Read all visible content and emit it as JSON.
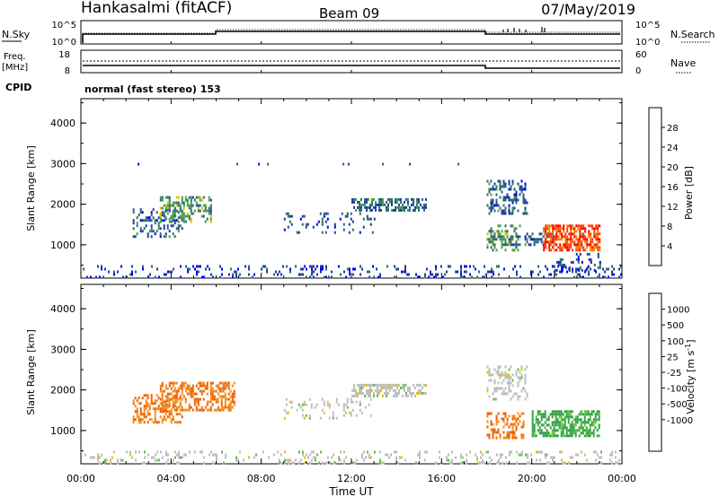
{
  "header": {
    "station": "Hankasalmi (fitACF)",
    "beam": "Beam 09",
    "date": "07/May/2019"
  },
  "noise_panel": {
    "left_label": "N.Sky",
    "right_label": "N.Search",
    "left_ticks": [
      "10^5",
      "10^0"
    ],
    "right_ticks": [
      "10^5",
      "10^0"
    ]
  },
  "freq_panel": {
    "left_label_1": "Freq.",
    "left_label_2": "[MHz]",
    "right_label": "Nave",
    "left_ticks": [
      "18",
      "8"
    ],
    "right_ticks": [
      "60",
      "0"
    ],
    "cpid_label": "CPID",
    "cpid_text": "normal (fast stereo) 153"
  },
  "x_ticks": [
    "00:00",
    "04:00",
    "08:00",
    "12:00",
    "16:00",
    "20:00",
    "00:00"
  ],
  "x_label": "Time UT",
  "colors": {
    "power_scale": [
      "#0000ff",
      "#1e3fa0",
      "#2f6e6e",
      "#45a045",
      "#e0c000",
      "#f08000",
      "#ff4000",
      "#ff0000"
    ],
    "velocity_scale": [
      "#1040d0",
      "#2080a0",
      "#30a040",
      "#60c040",
      "#bebebe",
      "#e8c000",
      "#f09020",
      "#f06000",
      "#ff2000",
      "#ff0000"
    ]
  },
  "chart_data": [
    {
      "type": "heatmap",
      "name": "Power",
      "ylabel": "Slant Range [km]",
      "xlabel": "Time UT",
      "x_range_hours": [
        0,
        24
      ],
      "ylim": [
        180,
        4600
      ],
      "y_ticks": [
        "4000",
        "3000",
        "2000",
        "1000"
      ],
      "colorbar_label": "Power [dB]",
      "colorbar_ticks": [
        "28",
        "24",
        "20",
        "16",
        "12",
        "8",
        "4"
      ],
      "colorbar_range": [
        0,
        32
      ],
      "regions": [
        {
          "t0": 0.0,
          "t1": 24.0,
          "r0": 200,
          "r1": 500,
          "level": 6,
          "density": 0.18
        },
        {
          "t0": 1.0,
          "t1": 18.0,
          "r0": 2960,
          "r1": 3020,
          "level": 8,
          "density": 0.05
        },
        {
          "t0": 2.3,
          "t1": 4.5,
          "r0": 1200,
          "r1": 1900,
          "level": 8,
          "density": 0.35
        },
        {
          "t0": 3.5,
          "t1": 5.8,
          "r0": 1600,
          "r1": 2200,
          "level": 12,
          "density": 0.5
        },
        {
          "t0": 9.0,
          "t1": 13.0,
          "r0": 1300,
          "r1": 1800,
          "level": 7,
          "density": 0.15
        },
        {
          "t0": 12.0,
          "t1": 15.3,
          "r0": 1850,
          "r1": 2150,
          "level": 9,
          "density": 0.6
        },
        {
          "t0": 18.0,
          "t1": 19.8,
          "r0": 1800,
          "r1": 2600,
          "level": 8,
          "density": 0.35
        },
        {
          "t0": 18.0,
          "t1": 19.5,
          "r0": 900,
          "r1": 1500,
          "level": 12,
          "density": 0.4
        },
        {
          "t0": 19.6,
          "t1": 21.0,
          "r0": 1000,
          "r1": 1300,
          "level": 8,
          "density": 0.4
        },
        {
          "t0": 20.5,
          "t1": 23.0,
          "r0": 900,
          "r1": 1500,
          "level": 26,
          "density": 0.7
        },
        {
          "t0": 21.0,
          "t1": 23.0,
          "r0": 400,
          "r1": 800,
          "level": 6,
          "density": 0.2
        }
      ]
    },
    {
      "type": "heatmap",
      "name": "Velocity",
      "ylabel": "Slant Range [km]",
      "xlabel": "Time UT",
      "x_range_hours": [
        0,
        24
      ],
      "ylim": [
        180,
        4600
      ],
      "y_ticks": [
        "4000",
        "3000",
        "2000",
        "1000"
      ],
      "colorbar_label": "Velocity [m s^-1]",
      "colorbar_ticks": [
        "1000",
        "500",
        "100",
        "25",
        "-25",
        "-100",
        "-500",
        "-1000"
      ],
      "regions": [
        {
          "t0": 0.0,
          "t1": 24.0,
          "r0": 200,
          "r1": 500,
          "level": 0,
          "density": 0.18
        },
        {
          "t0": 2.3,
          "t1": 4.5,
          "r0": 1200,
          "r1": 1900,
          "level": -500,
          "density": 0.45
        },
        {
          "t0": 3.5,
          "t1": 6.8,
          "r0": 1500,
          "r1": 2200,
          "level": -500,
          "density": 0.55
        },
        {
          "t0": 9.0,
          "t1": 13.0,
          "r0": 1300,
          "r1": 1800,
          "level": 0,
          "density": 0.15
        },
        {
          "t0": 12.0,
          "t1": 15.3,
          "r0": 1850,
          "r1": 2150,
          "level": 0,
          "density": 0.6
        },
        {
          "t0": 18.0,
          "t1": 19.8,
          "r0": 1800,
          "r1": 2600,
          "level": 0,
          "density": 0.35
        },
        {
          "t0": 18.0,
          "t1": 19.6,
          "r0": 850,
          "r1": 1450,
          "level": -500,
          "density": 0.45
        },
        {
          "t0": 20.0,
          "t1": 23.0,
          "r0": 900,
          "r1": 1500,
          "level": 150,
          "density": 0.6
        }
      ]
    }
  ]
}
